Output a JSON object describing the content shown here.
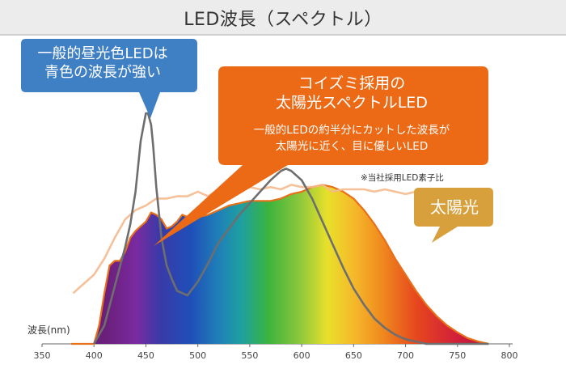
{
  "header": {
    "title": "LED波長（スペクトル）"
  },
  "callouts": {
    "general_led": {
      "line1": "一般的昼光色LEDは",
      "line2": "青色の波長が強い"
    },
    "koizumi": {
      "line1": "コイズミ採用の",
      "line2": "太陽光スペクトルLED",
      "sub1": "一般的LEDの約半分にカットした波長が",
      "sub2": "太陽光に近く、目に優しいLED"
    },
    "sunlight": {
      "label": "太陽光"
    }
  },
  "note": "※当社採用LED素子比",
  "colors": {
    "general_led": "#6e6e6e",
    "sunlight": "#f5b98e",
    "koizumi_outline": "#e8701a",
    "blue_callout": "#3f7fc4",
    "orange_callout": "#ec6a16",
    "sun_callout": "#d8a03c"
  },
  "chart_data": {
    "type": "line",
    "xlabel": "波長(nm)",
    "xlim": [
      350,
      800
    ],
    "ylim": [
      0,
      1.0
    ],
    "x_ticks": [
      350,
      400,
      450,
      500,
      550,
      600,
      650,
      700,
      750,
      800
    ],
    "series": [
      {
        "id": "koizumi_led",
        "x": [
          378,
          400,
          405,
          410,
          415,
          420,
          425,
          430,
          435,
          440,
          445,
          450,
          455,
          460,
          465,
          470,
          475,
          480,
          485,
          490,
          500,
          510,
          520,
          530,
          540,
          550,
          560,
          570,
          580,
          590,
          600,
          610,
          620,
          630,
          640,
          650,
          660,
          670,
          680,
          690,
          700,
          710,
          720,
          730,
          740,
          750,
          760,
          770,
          780
        ],
        "y": [
          0,
          0,
          0.08,
          0.22,
          0.34,
          0.36,
          0.36,
          0.4,
          0.46,
          0.49,
          0.51,
          0.53,
          0.57,
          0.56,
          0.54,
          0.5,
          0.51,
          0.53,
          0.56,
          0.55,
          0.55,
          0.56,
          0.58,
          0.6,
          0.61,
          0.62,
          0.62,
          0.62,
          0.63,
          0.65,
          0.66,
          0.68,
          0.69,
          0.68,
          0.66,
          0.63,
          0.58,
          0.52,
          0.45,
          0.37,
          0.3,
          0.23,
          0.17,
          0.12,
          0.08,
          0.05,
          0.025,
          0.01,
          0
        ]
      },
      {
        "id": "general_led",
        "x": [
          400,
          410,
          420,
          430,
          435,
          440,
          445,
          450,
          452,
          455,
          457,
          460,
          465,
          470,
          475,
          480,
          490,
          500,
          510,
          520,
          540,
          560,
          570,
          580,
          585,
          590,
          600,
          610,
          620,
          630,
          640,
          650,
          660,
          670,
          680,
          690,
          700,
          720,
          740,
          760,
          780
        ],
        "y": [
          0,
          0.08,
          0.25,
          0.42,
          0.52,
          0.66,
          0.88,
          1.0,
          1.0,
          0.95,
          0.86,
          0.68,
          0.46,
          0.34,
          0.28,
          0.23,
          0.21,
          0.27,
          0.35,
          0.44,
          0.56,
          0.66,
          0.71,
          0.75,
          0.76,
          0.75,
          0.71,
          0.63,
          0.53,
          0.43,
          0.33,
          0.24,
          0.17,
          0.11,
          0.07,
          0.04,
          0.02,
          0,
          0,
          0,
          0
        ]
      },
      {
        "id": "sunlight",
        "x": [
          380,
          390,
          400,
          410,
          420,
          430,
          440,
          450,
          460,
          470,
          480,
          490,
          500,
          510,
          520,
          530,
          540,
          550,
          560,
          570,
          580,
          590,
          600,
          610,
          620,
          630,
          640,
          650,
          660,
          670,
          680,
          690,
          700,
          710,
          720,
          730,
          740,
          750,
          755,
          760,
          770,
          780
        ],
        "y": [
          0.22,
          0.26,
          0.3,
          0.37,
          0.46,
          0.54,
          0.58,
          0.6,
          0.63,
          0.63,
          0.64,
          0.64,
          0.66,
          0.64,
          0.67,
          0.66,
          0.66,
          0.68,
          0.67,
          0.68,
          0.67,
          0.69,
          0.68,
          0.68,
          0.69,
          0.66,
          0.67,
          0.67,
          0.67,
          0.66,
          0.67,
          0.66,
          0.65,
          0.66,
          0.64,
          0.64,
          0.61,
          0.63,
          0.59,
          0.58,
          0.58,
          0.57
        ]
      }
    ]
  }
}
